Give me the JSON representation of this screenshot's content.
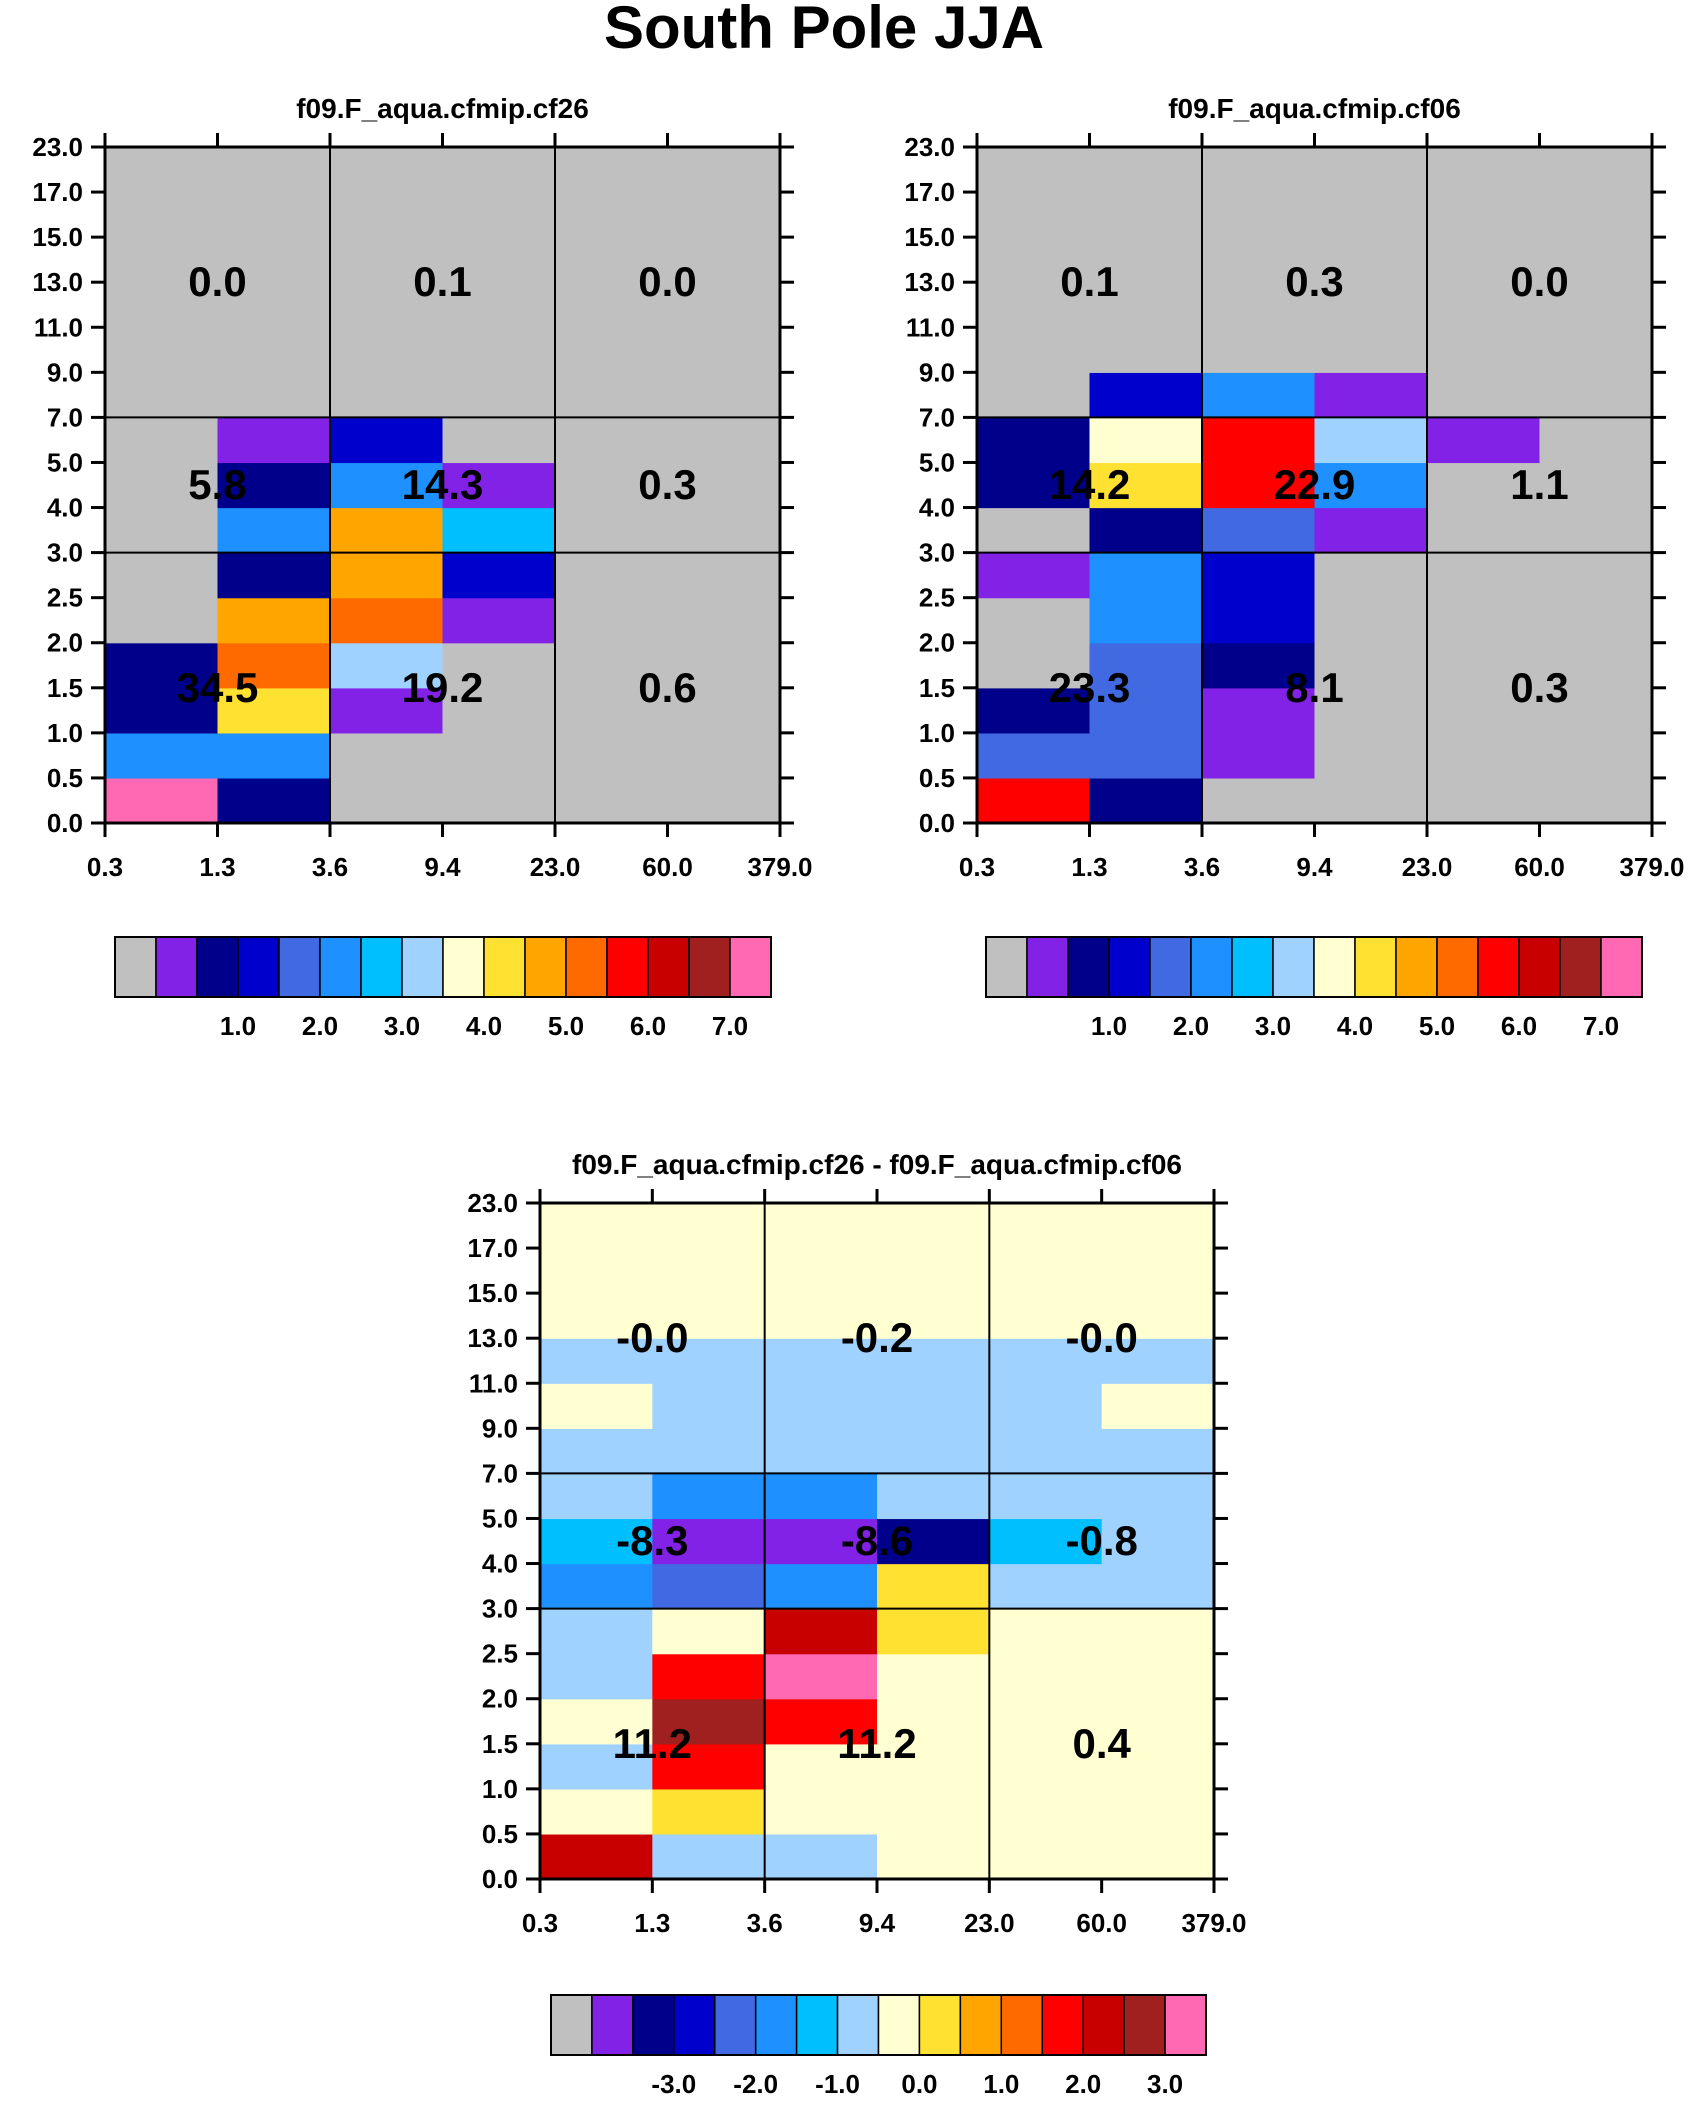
{
  "title": "South Pole JJA",
  "palette": {
    "seq": [
      "#c0c0c0",
      "#8222e6",
      "#00008a",
      "#0000cc",
      "#4169e1",
      "#1e90ff",
      "#00bfff",
      "#a0d2ff",
      "#ffffd2",
      "#ffe131",
      "#ffa500",
      "#ff6a00",
      "#ff0000",
      "#c80000",
      "#a02020",
      "#ff69b4"
    ],
    "diff": [
      "#c0c0c0",
      "#8222e6",
      "#00008a",
      "#0000cc",
      "#4169e1",
      "#1e90ff",
      "#00bfff",
      "#a0d2ff",
      "#ffffd2",
      "#ffe131",
      "#ffa500",
      "#ff6a00",
      "#ff0000",
      "#c80000",
      "#a02020",
      "#ff69b4"
    ]
  },
  "chart_data": [
    {
      "type": "heatmap",
      "title": "f09.F_aqua.cfmip.cf26",
      "x_ticks": [
        "0.3",
        "1.3",
        "3.6",
        "9.4",
        "23.0",
        "60.0",
        "379.0"
      ],
      "y_ticks": [
        "0.0",
        "0.5",
        "1.0",
        "1.5",
        "2.0",
        "2.5",
        "3.0",
        "4.0",
        "5.0",
        "7.0",
        "9.0",
        "11.0",
        "13.0",
        "15.0",
        "17.0",
        "23.0"
      ],
      "grid": "on",
      "cells": [
        [
          15,
          2,
          0,
          0,
          0,
          0
        ],
        [
          5,
          5,
          0,
          0,
          0,
          0
        ],
        [
          2,
          9,
          1,
          0,
          0,
          0
        ],
        [
          2,
          11,
          7,
          0,
          0,
          0
        ],
        [
          0,
          10,
          11,
          1,
          0,
          0
        ],
        [
          0,
          2,
          10,
          3,
          0,
          0
        ],
        [
          0,
          5,
          10,
          6,
          0,
          0
        ],
        [
          0,
          2,
          5,
          1,
          0,
          0
        ],
        [
          0,
          1,
          3,
          0,
          0,
          0
        ],
        [
          0,
          0,
          0,
          0,
          0,
          0
        ],
        [
          0,
          0,
          0,
          0,
          0,
          0
        ],
        [
          0,
          0,
          0,
          0,
          0,
          0
        ],
        [
          0,
          0,
          0,
          0,
          0,
          0
        ],
        [
          0,
          0,
          0,
          0,
          0,
          0
        ],
        [
          0,
          0,
          0,
          0,
          0,
          0
        ]
      ],
      "box_values": {
        "top": [
          "0.0",
          "0.1",
          "0.0"
        ],
        "mid": [
          "5.8",
          "14.3",
          "0.3"
        ],
        "low": [
          "34.5",
          "19.2",
          "0.6"
        ]
      },
      "colorbar_labels": [
        "1.0",
        "2.0",
        "3.0",
        "4.0",
        "5.0",
        "6.0",
        "7.0"
      ]
    },
    {
      "type": "heatmap",
      "title": "f09.F_aqua.cfmip.cf06",
      "x_ticks": [
        "0.3",
        "1.3",
        "3.6",
        "9.4",
        "23.0",
        "60.0",
        "379.0"
      ],
      "y_ticks": [
        "0.0",
        "0.5",
        "1.0",
        "1.5",
        "2.0",
        "2.5",
        "3.0",
        "4.0",
        "5.0",
        "7.0",
        "9.0",
        "11.0",
        "13.0",
        "15.0",
        "17.0",
        "23.0"
      ],
      "grid": "on",
      "cells": [
        [
          12,
          2,
          0,
          0,
          0,
          0
        ],
        [
          4,
          4,
          1,
          0,
          0,
          0
        ],
        [
          2,
          4,
          1,
          0,
          0,
          0
        ],
        [
          0,
          4,
          2,
          0,
          0,
          0
        ],
        [
          0,
          5,
          3,
          0,
          0,
          0
        ],
        [
          1,
          5,
          3,
          0,
          0,
          0
        ],
        [
          0,
          2,
          4,
          1,
          0,
          0
        ],
        [
          2,
          9,
          12,
          5,
          0,
          0
        ],
        [
          2,
          8,
          12,
          7,
          1,
          0
        ],
        [
          0,
          3,
          5,
          1,
          0,
          0
        ],
        [
          0,
          0,
          0,
          0,
          0,
          0
        ],
        [
          0,
          0,
          0,
          0,
          0,
          0
        ],
        [
          0,
          0,
          0,
          0,
          0,
          0
        ],
        [
          0,
          0,
          0,
          0,
          0,
          0
        ],
        [
          0,
          0,
          0,
          0,
          0,
          0
        ]
      ],
      "box_values": {
        "top": [
          "0.1",
          "0.3",
          "0.0"
        ],
        "mid": [
          "14.2",
          "22.9",
          "1.1"
        ],
        "low": [
          "23.3",
          "8.1",
          "0.3"
        ]
      },
      "colorbar_labels": [
        "1.0",
        "2.0",
        "3.0",
        "4.0",
        "5.0",
        "6.0",
        "7.0"
      ]
    },
    {
      "type": "heatmap",
      "title": "f09.F_aqua.cfmip.cf26 - f09.F_aqua.cfmip.cf06",
      "x_ticks": [
        "0.3",
        "1.3",
        "3.6",
        "9.4",
        "23.0",
        "60.0",
        "379.0"
      ],
      "y_ticks": [
        "0.0",
        "0.5",
        "1.0",
        "1.5",
        "2.0",
        "2.5",
        "3.0",
        "4.0",
        "5.0",
        "7.0",
        "9.0",
        "11.0",
        "13.0",
        "15.0",
        "17.0",
        "23.0"
      ],
      "grid": "on",
      "cells": [
        [
          13,
          7,
          7,
          8,
          8,
          8
        ],
        [
          8,
          9,
          8,
          8,
          8,
          8
        ],
        [
          7,
          12,
          8,
          8,
          8,
          8
        ],
        [
          8,
          14,
          12,
          8,
          8,
          8
        ],
        [
          7,
          12,
          15,
          8,
          8,
          8
        ],
        [
          7,
          8,
          13,
          9,
          8,
          8
        ],
        [
          5,
          4,
          5,
          9,
          7,
          7
        ],
        [
          6,
          1,
          1,
          2,
          6,
          7
        ],
        [
          7,
          5,
          5,
          7,
          7,
          7
        ],
        [
          7,
          7,
          7,
          7,
          7,
          7
        ],
        [
          8,
          7,
          7,
          7,
          7,
          8
        ],
        [
          7,
          7,
          7,
          7,
          7,
          7
        ],
        [
          8,
          8,
          8,
          8,
          8,
          8
        ],
        [
          8,
          8,
          8,
          8,
          8,
          8
        ],
        [
          8,
          8,
          8,
          8,
          8,
          8
        ]
      ],
      "box_values": {
        "top": [
          "-0.0",
          "-0.2",
          "-0.0"
        ],
        "mid": [
          "-8.3",
          "-8.6",
          "-0.8"
        ],
        "low": [
          "11.2",
          "11.2",
          "0.4"
        ]
      },
      "colorbar_labels": [
        "-3.0",
        "-2.0",
        "-1.0",
        "0.0",
        "1.0",
        "2.0",
        "3.0"
      ]
    }
  ]
}
